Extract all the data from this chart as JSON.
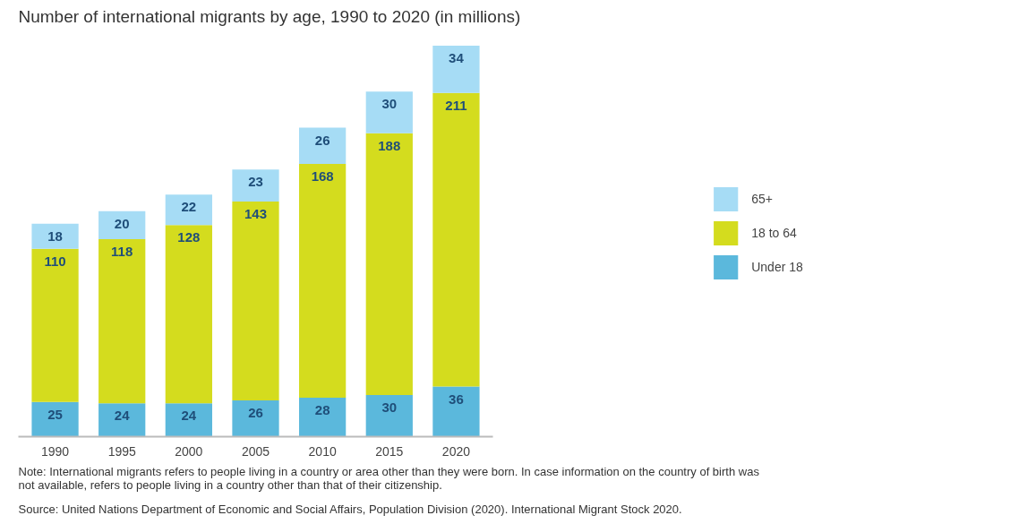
{
  "chart_data": {
    "type": "bar",
    "title": "Number of international migrants by age, 1990 to 2020 (in millions)",
    "categories": [
      "1990",
      "1995",
      "2000",
      "2005",
      "2010",
      "2015",
      "2020"
    ],
    "series": [
      {
        "name": "Under 18",
        "color": "#5bb8dc",
        "values": [
          25,
          24,
          24,
          26,
          28,
          30,
          36
        ]
      },
      {
        "name": "18 to 64",
        "color": "#d4dc1e",
        "values": [
          110,
          118,
          128,
          143,
          168,
          188,
          211
        ]
      },
      {
        "name": "65+",
        "color": "#a6dcf5",
        "values": [
          18,
          20,
          22,
          23,
          26,
          30,
          34
        ]
      }
    ],
    "stacked": true,
    "data_labels": true,
    "legend": "right",
    "grid": false,
    "annotations": [
      "Note: International migrants refers to people living in a country or area other than they were born. In case information on the country of birth was not available, refers to people living in a country other than that of their citizenship.",
      "Source: United Nations Department of Economic and Social Affairs, Population Division (2020). International Migrant Stock 2020."
    ]
  }
}
